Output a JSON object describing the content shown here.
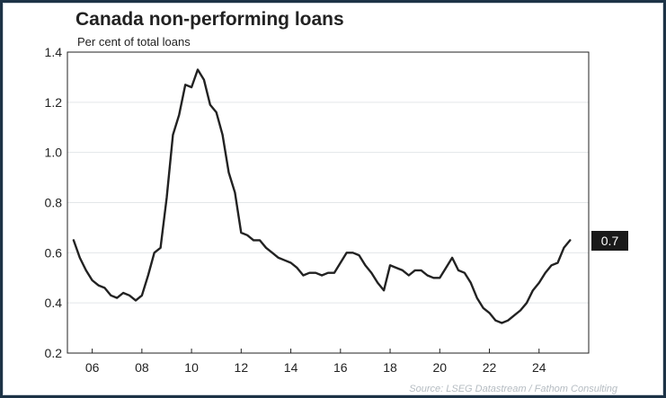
{
  "chart_data": {
    "type": "line",
    "title": "Canada non-performing loans",
    "subtitle": "Per cent of total loans",
    "source": "Source: LSEG Datastream / Fathom Consulting",
    "xlabel": "",
    "ylabel": "",
    "ylim": [
      0.2,
      1.4
    ],
    "xlim": [
      2005.0,
      2026.0
    ],
    "yticks": [
      0.2,
      0.4,
      0.6,
      0.8,
      1.0,
      1.2,
      1.4
    ],
    "ytick_labels": [
      "0.2",
      "0.4",
      "0.6",
      "0.8",
      "1.0",
      "1.2",
      "1.4"
    ],
    "xticks": [
      2006,
      2008,
      2010,
      2012,
      2014,
      2016,
      2018,
      2020,
      2022,
      2024
    ],
    "xtick_labels": [
      "06",
      "08",
      "10",
      "12",
      "14",
      "16",
      "18",
      "20",
      "22",
      "24"
    ],
    "grid": true,
    "line_color": "#222222",
    "last_value_label": "0.7",
    "series": [
      {
        "x": [
          2005.25,
          2005.5,
          2005.75,
          2006.0,
          2006.25,
          2006.5,
          2006.75,
          2007.0,
          2007.25,
          2007.5,
          2007.75,
          2008.0,
          2008.25,
          2008.5,
          2008.75,
          2009.0,
          2009.25,
          2009.5,
          2009.75,
          2010.0,
          2010.25,
          2010.5,
          2010.75,
          2011.0,
          2011.25,
          2011.5,
          2011.75,
          2012.0,
          2012.25,
          2012.5,
          2012.75,
          2013.0,
          2013.25,
          2013.5,
          2013.75,
          2014.0,
          2014.25,
          2014.5,
          2014.75,
          2015.0,
          2015.25,
          2015.5,
          2015.75,
          2016.0,
          2016.25,
          2016.5,
          2016.75,
          2017.0,
          2017.25,
          2017.5,
          2017.75,
          2018.0,
          2018.25,
          2018.5,
          2018.75,
          2019.0,
          2019.25,
          2019.5,
          2019.75,
          2020.0,
          2020.25,
          2020.5,
          2020.75,
          2021.0,
          2021.25,
          2021.5,
          2021.75,
          2022.0,
          2022.25,
          2022.5,
          2022.75,
          2023.0,
          2023.25,
          2023.5,
          2023.75,
          2024.0,
          2024.25,
          2024.5,
          2024.75,
          2025.0,
          2025.25
        ],
        "y": [
          0.65,
          0.58,
          0.53,
          0.49,
          0.47,
          0.46,
          0.43,
          0.42,
          0.44,
          0.43,
          0.41,
          0.43,
          0.51,
          0.6,
          0.62,
          0.82,
          1.07,
          1.15,
          1.27,
          1.26,
          1.33,
          1.29,
          1.19,
          1.16,
          1.07,
          0.92,
          0.84,
          0.68,
          0.67,
          0.65,
          0.65,
          0.62,
          0.6,
          0.58,
          0.57,
          0.56,
          0.54,
          0.51,
          0.52,
          0.52,
          0.51,
          0.52,
          0.52,
          0.56,
          0.6,
          0.6,
          0.59,
          0.55,
          0.52,
          0.48,
          0.45,
          0.55,
          0.54,
          0.53,
          0.51,
          0.53,
          0.53,
          0.51,
          0.5,
          0.5,
          0.54,
          0.58,
          0.53,
          0.52,
          0.48,
          0.42,
          0.38,
          0.36,
          0.33,
          0.32,
          0.33,
          0.35,
          0.37,
          0.4,
          0.45,
          0.48,
          0.52,
          0.55,
          0.56,
          0.62,
          0.65
        ]
      }
    ]
  }
}
